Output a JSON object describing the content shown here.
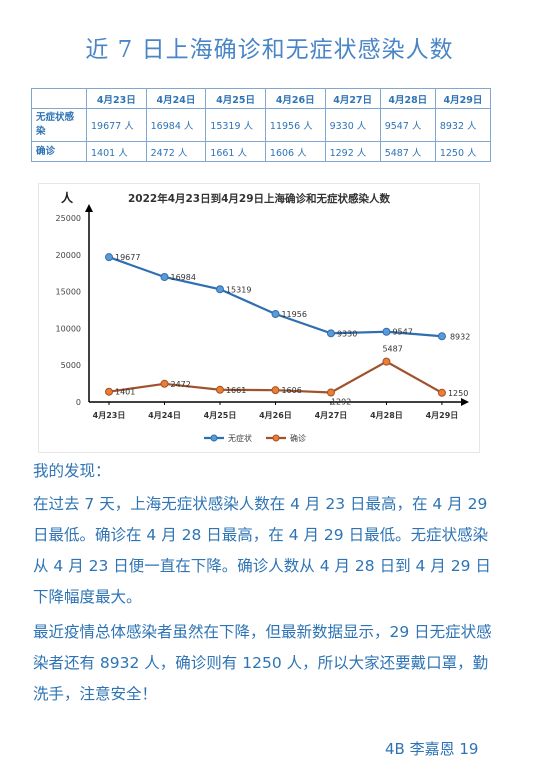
{
  "title": "近 7 日上海确诊和无症状感染人数",
  "table": {
    "headers": [
      "4月23日",
      "4月24日",
      "4月25日",
      "4月26日",
      "4月27日",
      "4月28日",
      "4月29日"
    ],
    "rows": [
      {
        "label": "无症状感染",
        "cells": [
          "19677 人",
          "16984 人",
          "15319 人",
          "11956 人",
          "9330 人",
          "9547 人",
          "8932 人"
        ]
      },
      {
        "label": "确诊",
        "cells": [
          "1401 人",
          "2472 人",
          "1661 人",
          "1606 人",
          "1292 人",
          "5487 人",
          "1250 人"
        ]
      }
    ]
  },
  "chart_data": {
    "type": "line",
    "title": "2022年4月23日到4月29日上海确诊和无症状感染人数",
    "ylabel": "人",
    "xlabel": "",
    "categories": [
      "4月23日",
      "4月24日",
      "4月25日",
      "4月26日",
      "4月27日",
      "4月28日",
      "4月29日"
    ],
    "yticks": [
      "0",
      "5000",
      "10000",
      "15000",
      "20000",
      "25000"
    ],
    "ylim": [
      0,
      25000
    ],
    "legend_position": "bottom",
    "series": [
      {
        "name": "无症状",
        "color": "#2f6eb0",
        "values": [
          19677,
          16984,
          15319,
          11956,
          9330,
          9547,
          8932
        ],
        "labels": [
          "19677",
          "16984",
          "15319",
          "11956",
          "9330",
          "9547",
          "8932"
        ]
      },
      {
        "name": "确诊",
        "color": "#a0522d",
        "values": [
          1401,
          2472,
          1661,
          1606,
          1292,
          5487,
          1250
        ],
        "labels": [
          "1401",
          "2472",
          "1661",
          "1606",
          "1292",
          "5487",
          "1250"
        ]
      }
    ]
  },
  "findings": {
    "heading": "我的发现：",
    "p1": "在过去 7 天，上海无症状感染人数在 4 月 23 日最高，在 4 月 29 日最低。确诊在 4 月 28 日最高，在 4 月 29 日最低。无症状感染从 4 月 23 日便一直在下降。确诊人数从 4 月 28 日到 4 月 29 日下降幅度最大。",
    "p2": "最近疫情总体感染者虽然在下降，但最新数据显示，29 日无症状感染者还有 8932 人，确诊则有 1250 人，所以大家还要戴口罩，勤洗手，注意安全！"
  },
  "signature": "4B 李嘉恩  19"
}
